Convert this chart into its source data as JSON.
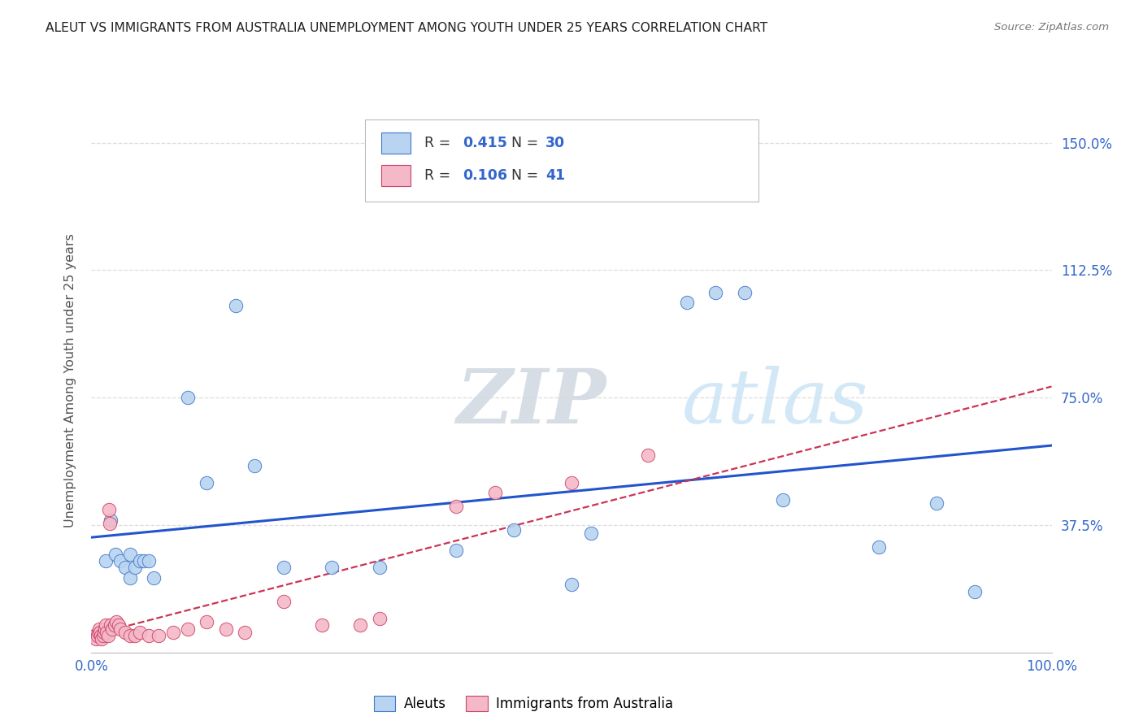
{
  "title": "ALEUT VS IMMIGRANTS FROM AUSTRALIA UNEMPLOYMENT AMONG YOUTH UNDER 25 YEARS CORRELATION CHART",
  "source": "Source: ZipAtlas.com",
  "ylabel": "Unemployment Among Youth under 25 years",
  "xlim": [
    0.0,
    1.0
  ],
  "ylim": [
    0.0,
    1.6
  ],
  "ytick_positions": [
    0.375,
    0.75,
    1.125,
    1.5
  ],
  "ytick_labels": [
    "37.5%",
    "75.0%",
    "112.5%",
    "150.0%"
  ],
  "xtick_positions": [
    0.0,
    1.0
  ],
  "xtick_labels": [
    "0.0%",
    "100.0%"
  ],
  "aleut_color": "#b8d4f0",
  "aleut_edge_color": "#4477cc",
  "aus_color": "#f4b8c8",
  "aus_edge_color": "#cc4466",
  "aleut_line_color": "#2255cc",
  "aus_line_color": "#cc3355",
  "aleut_R": "0.415",
  "aleut_N": "30",
  "aus_R": "0.106",
  "aus_N": "41",
  "watermark_text": "ZIPatlas",
  "watermark_color": "#cce4f5",
  "bg_color": "#ffffff",
  "grid_color": "#dddddd",
  "legend_text_color": "#3366cc",
  "label_color": "#3366cc",
  "title_color": "#222222",
  "source_color": "#777777",
  "ylabel_color": "#555555",
  "aleut_x": [
    0.015,
    0.02,
    0.025,
    0.03,
    0.035,
    0.04,
    0.04,
    0.045,
    0.05,
    0.055,
    0.06,
    0.065,
    0.1,
    0.12,
    0.15,
    0.17,
    0.2,
    0.25,
    0.3,
    0.38,
    0.44,
    0.5,
    0.52,
    0.62,
    0.65,
    0.68,
    0.72,
    0.82,
    0.88,
    0.92
  ],
  "aleut_y": [
    0.27,
    0.39,
    0.29,
    0.27,
    0.25,
    0.22,
    0.29,
    0.25,
    0.27,
    0.27,
    0.27,
    0.22,
    0.75,
    0.5,
    1.02,
    0.55,
    0.25,
    0.25,
    0.25,
    0.3,
    0.36,
    0.2,
    0.35,
    1.03,
    1.06,
    1.06,
    0.45,
    0.31,
    0.44,
    0.18
  ],
  "aus_x": [
    0.003,
    0.005,
    0.006,
    0.007,
    0.008,
    0.009,
    0.01,
    0.011,
    0.012,
    0.013,
    0.014,
    0.015,
    0.016,
    0.017,
    0.018,
    0.019,
    0.02,
    0.022,
    0.024,
    0.026,
    0.028,
    0.03,
    0.035,
    0.04,
    0.045,
    0.05,
    0.06,
    0.07,
    0.085,
    0.1,
    0.12,
    0.14,
    0.16,
    0.2,
    0.24,
    0.28,
    0.3,
    0.38,
    0.42,
    0.5,
    0.58
  ],
  "aus_y": [
    0.05,
    0.04,
    0.05,
    0.06,
    0.07,
    0.06,
    0.05,
    0.04,
    0.05,
    0.06,
    0.07,
    0.08,
    0.06,
    0.05,
    0.42,
    0.38,
    0.08,
    0.07,
    0.08,
    0.09,
    0.08,
    0.07,
    0.06,
    0.05,
    0.05,
    0.06,
    0.05,
    0.05,
    0.06,
    0.07,
    0.09,
    0.07,
    0.06,
    0.15,
    0.08,
    0.08,
    0.1,
    0.43,
    0.47,
    0.5,
    0.58
  ]
}
